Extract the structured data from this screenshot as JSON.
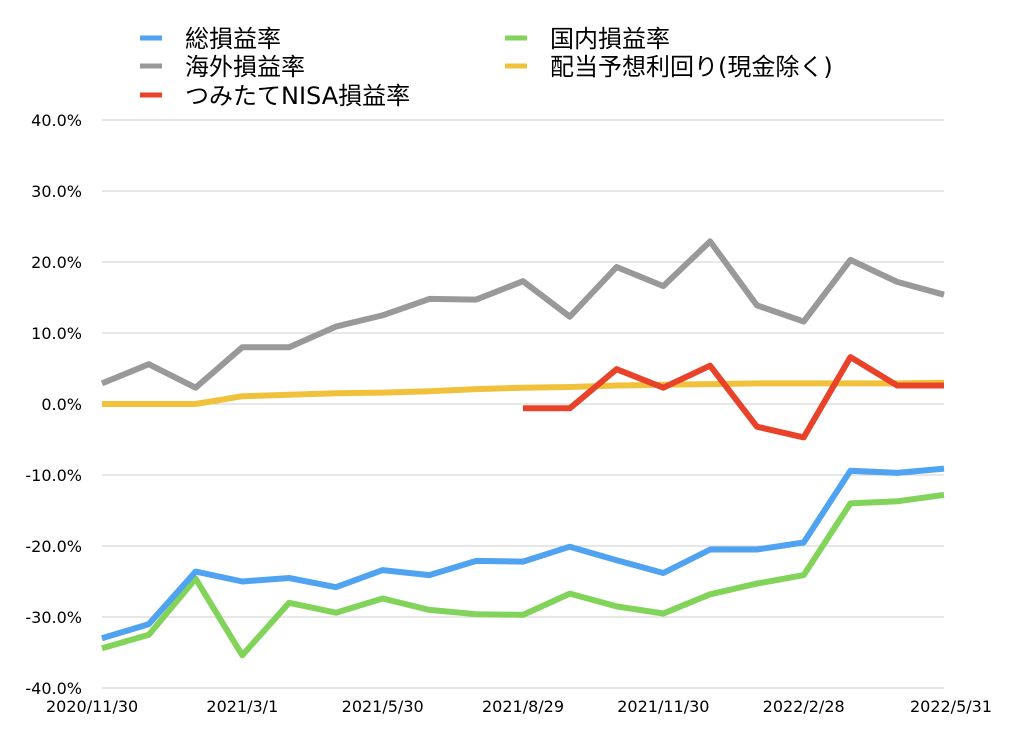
{
  "chart_data": {
    "type": "line",
    "title": "",
    "xlabel": "",
    "ylabel": "",
    "x_count": 19,
    "x_tick_labels": [
      {
        "index": 0,
        "label": "2020/11/30"
      },
      {
        "index": 3,
        "label": "2021/3/1"
      },
      {
        "index": 6,
        "label": "2021/5/30"
      },
      {
        "index": 9,
        "label": "2021/8/29"
      },
      {
        "index": 12,
        "label": "2021/11/30"
      },
      {
        "index": 15,
        "label": "2022/2/28"
      },
      {
        "index": 18,
        "label": "2022/5/31"
      }
    ],
    "ylim": [
      -40,
      40
    ],
    "y_ticks": [
      40,
      30,
      20,
      10,
      0,
      -10,
      -20,
      -30,
      -40
    ],
    "y_tick_labels": [
      "40.0%",
      "30.0%",
      "20.0%",
      "10.0%",
      "0.0%",
      "-10.0%",
      "-20.0%",
      "-30.0%",
      "-40.0%"
    ],
    "grid": true,
    "legend_placement": "top",
    "series": [
      {
        "name": "総損益率",
        "color": "#4fa3f0",
        "start_index": 0,
        "values": [
          -33.0,
          -31.0,
          -23.6,
          -25.0,
          -24.5,
          -25.8,
          -23.4,
          -24.1,
          -22.1,
          -22.2,
          -20.1,
          -22.0,
          -23.8,
          -20.5,
          -20.5,
          -19.5,
          -9.4,
          -9.7,
          -9.1
        ]
      },
      {
        "name": "海外損益率",
        "color": "#999999",
        "start_index": 0,
        "values": [
          2.9,
          5.6,
          2.3,
          8.0,
          8.0,
          10.9,
          12.5,
          14.8,
          14.7,
          17.3,
          12.3,
          19.3,
          16.6,
          22.9,
          13.9,
          11.6,
          20.3,
          17.2,
          15.4
        ]
      },
      {
        "name": "つみたてNISA損益率",
        "color": "#e8432a",
        "start_index": 9,
        "values": [
          -0.6,
          -0.6,
          4.9,
          2.3,
          5.4,
          -3.2,
          -4.7,
          6.6,
          2.6,
          2.6
        ]
      },
      {
        "name": "国内損益率",
        "color": "#82d35a",
        "start_index": 0,
        "values": [
          -34.4,
          -32.5,
          -24.6,
          -35.4,
          -28.0,
          -29.4,
          -27.4,
          -29.0,
          -29.6,
          -29.7,
          -26.7,
          -28.5,
          -29.5,
          -26.8,
          -25.3,
          -24.1,
          -14.0,
          -13.7,
          -12.8
        ]
      },
      {
        "name": "配当予想利回り(現金除く)",
        "color": "#f0c23c",
        "start_index": 0,
        "values": [
          0.0,
          0.0,
          0.0,
          1.1,
          1.3,
          1.5,
          1.6,
          1.8,
          2.1,
          2.3,
          2.4,
          2.6,
          2.7,
          2.8,
          2.9,
          2.9,
          2.9,
          2.9,
          3.0
        ]
      }
    ],
    "legend_order": [
      {
        "series": 0,
        "column": 0,
        "row": 0
      },
      {
        "series": 1,
        "column": 0,
        "row": 1
      },
      {
        "series": 2,
        "column": 0,
        "row": 2
      },
      {
        "series": 3,
        "column": 1,
        "row": 0
      },
      {
        "series": 4,
        "column": 1,
        "row": 1
      }
    ]
  }
}
